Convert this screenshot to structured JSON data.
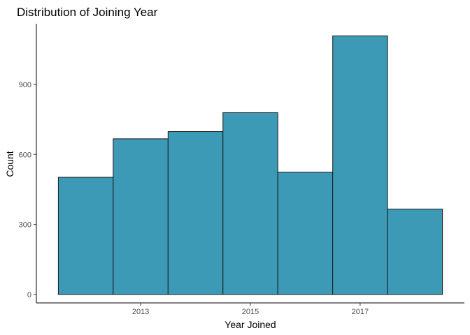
{
  "chart_data": {
    "type": "bar",
    "title": "Distribution of Joining Year",
    "xlabel": "Year Joined",
    "ylabel": "Count",
    "bins": [
      {
        "start": 2011.5,
        "end": 2012.5,
        "count": 502
      },
      {
        "start": 2012.5,
        "end": 2013.5,
        "count": 667
      },
      {
        "start": 2013.5,
        "end": 2014.5,
        "count": 698
      },
      {
        "start": 2014.5,
        "end": 2015.5,
        "count": 779
      },
      {
        "start": 2015.5,
        "end": 2016.5,
        "count": 524
      },
      {
        "start": 2016.5,
        "end": 2017.5,
        "count": 1108
      },
      {
        "start": 2017.5,
        "end": 2018.5,
        "count": 366
      }
    ],
    "xlim": [
      2011.1,
      2018.9
    ],
    "ylim": [
      -36,
      1160
    ],
    "xticks": [
      2013,
      2015,
      2017
    ],
    "yticks": [
      0,
      300,
      600,
      900
    ],
    "bar_color": "#3c9ab6",
    "bar_edge_color": "#1a1a1a",
    "grid": false,
    "legend": "none"
  }
}
